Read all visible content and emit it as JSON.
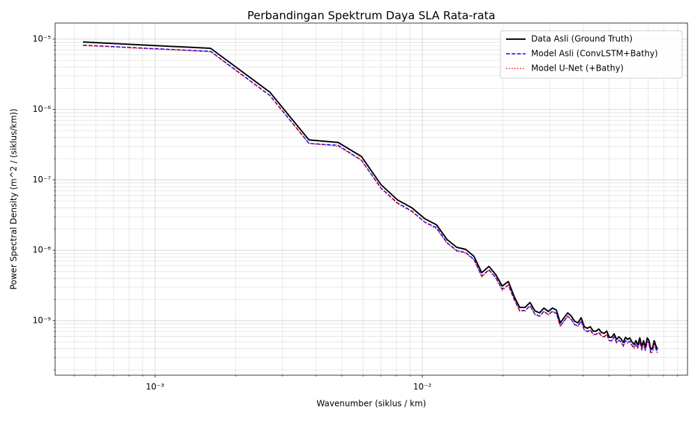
{
  "chart_data": {
    "type": "line",
    "title": "Perbandingan Spektrum Daya SLA Rata-rata",
    "x_label": "Wavenumber (siklus / km)",
    "y_label": "Power Spectral Density (m^2 / (siklus/km))",
    "xscale": "log",
    "yscale": "log",
    "grid": true,
    "legend": "upper right",
    "xlim": [
      0.000423,
      0.0982
    ],
    "ylim": [
      1.68e-10,
      1.69e-05
    ],
    "xticks": [
      {
        "value": 0.001,
        "label": "10⁻³"
      },
      {
        "value": 0.01,
        "label": "10⁻²"
      }
    ],
    "yticks": [
      {
        "value": 1e-09,
        "label": "10⁻⁹"
      },
      {
        "value": 1e-08,
        "label": "10⁻⁸"
      },
      {
        "value": 1e-07,
        "label": "10⁻⁷"
      },
      {
        "value": 1e-06,
        "label": "10⁻⁶"
      },
      {
        "value": 1e-05,
        "label": "10⁻⁵"
      }
    ],
    "xminorticks": [
      0.0005,
      0.0006,
      0.0007,
      0.0008,
      0.0009,
      0.002,
      0.003,
      0.004,
      0.005,
      0.006,
      0.007,
      0.008,
      0.009,
      0.02,
      0.03,
      0.04,
      0.05,
      0.06,
      0.07,
      0.08,
      0.09
    ],
    "yminorticks": [
      2e-10,
      3e-10,
      4e-10,
      5e-10,
      6e-10,
      7e-10,
      8e-10,
      9e-10,
      2e-09,
      3e-09,
      4e-09,
      5e-09,
      6e-09,
      7e-09,
      8e-09,
      9e-09,
      2e-08,
      3e-08,
      4e-08,
      5e-08,
      6e-08,
      7e-08,
      8e-08,
      9e-08,
      2e-07,
      3e-07,
      4e-07,
      5e-07,
      6e-07,
      7e-07,
      8e-07,
      9e-07,
      2e-06,
      3e-06,
      4e-06,
      5e-06,
      6e-06,
      7e-06,
      8e-06,
      9e-06
    ],
    "x": [
      0.000538,
      0.001614,
      0.00269,
      0.003766,
      0.004842,
      0.005918,
      0.006994,
      0.00807,
      0.009146,
      0.010222,
      0.011298,
      0.012374,
      0.01345,
      0.014526,
      0.015602,
      0.016678,
      0.017754,
      0.01883,
      0.019906,
      0.020982,
      0.022058,
      0.023134,
      0.02421,
      0.025286,
      0.026362,
      0.027438,
      0.028514,
      0.02959,
      0.030666,
      0.031742,
      0.032818,
      0.033894,
      0.03497,
      0.036046,
      0.037122,
      0.038198,
      0.039274,
      0.04035,
      0.041426,
      0.042502,
      0.043578,
      0.044654,
      0.04573,
      0.046806,
      0.047882,
      0.048958,
      0.050034,
      0.05111,
      0.052186,
      0.053262,
      0.054338,
      0.055414,
      0.05649,
      0.057566,
      0.058642,
      0.059718,
      0.060794,
      0.06187,
      0.062946,
      0.064022,
      0.065098,
      0.066174,
      0.06725,
      0.068326,
      0.069402,
      0.070478,
      0.071554,
      0.07263,
      0.073706,
      0.074782,
      0.075858
    ],
    "series": [
      {
        "name": "Data Asli (Ground Truth)",
        "color": "#000000",
        "linestyle": "solid",
        "values": [
          9.1e-06,
          7.4e-06,
          1.76e-06,
          3.7e-07,
          3.4e-07,
          2.15e-07,
          8.6e-08,
          5.2e-08,
          4e-08,
          2.8e-08,
          2.3e-08,
          1.42e-08,
          1.1e-08,
          1.03e-08,
          8.2e-09,
          4.8e-09,
          5.9e-09,
          4.5e-09,
          3.1e-09,
          3.6e-09,
          2.2e-09,
          1.54e-09,
          1.54e-09,
          1.81e-09,
          1.38e-09,
          1.29e-09,
          1.51e-09,
          1.35e-09,
          1.51e-09,
          1.41e-09,
          9.3e-10,
          1.1e-09,
          1.29e-09,
          1.17e-09,
          9.8e-10,
          9.3e-10,
          1.1e-09,
          8.2e-10,
          7.8e-10,
          8.2e-10,
          7.1e-10,
          7.1e-10,
          7.6e-10,
          6.8e-10,
          6.6e-10,
          7.1e-10,
          5.8e-10,
          5.8e-10,
          6.5e-10,
          5.4e-10,
          5.9e-10,
          5.5e-10,
          4.9e-10,
          5.8e-10,
          5.4e-10,
          5.7e-10,
          5e-10,
          4.6e-10,
          5.2e-10,
          4.5e-10,
          5.7e-10,
          4.3e-10,
          5.2e-10,
          4.2e-10,
          5.7e-10,
          5.2e-10,
          3.9e-10,
          4.1e-10,
          5.2e-10,
          4.4e-10,
          3.9e-10
        ]
      },
      {
        "name": "Model Asli (ConvLSTM+Bathy)",
        "color": "#0000ff",
        "linestyle": "dashed",
        "values": [
          8.2e-06,
          6.7e-06,
          1.58e-06,
          3.3e-07,
          3.1e-07,
          1.9e-07,
          7.7e-08,
          4.7e-08,
          3.6e-08,
          2.5e-08,
          2.1e-08,
          1.28e-08,
          9.9e-09,
          9.3e-09,
          7.4e-09,
          4.3e-09,
          5.3e-09,
          4.1e-09,
          2.8e-09,
          3.2e-09,
          2e-09,
          1.39e-09,
          1.39e-09,
          1.63e-09,
          1.24e-09,
          1.16e-09,
          1.36e-09,
          1.22e-09,
          1.36e-09,
          1.27e-09,
          8.4e-10,
          9.9e-10,
          1.16e-09,
          1.05e-09,
          8.8e-10,
          8.4e-10,
          9.9e-10,
          7.4e-10,
          7e-10,
          7.4e-10,
          6.4e-10,
          6.4e-10,
          6.8e-10,
          6.1e-10,
          5.9e-10,
          6.4e-10,
          5.2e-10,
          5.2e-10,
          5.9e-10,
          4.9e-10,
          5.3e-10,
          5e-10,
          4.4e-10,
          5.2e-10,
          4.9e-10,
          5.1e-10,
          4.5e-10,
          4.1e-10,
          4.7e-10,
          4.1e-10,
          5.1e-10,
          3.9e-10,
          4.7e-10,
          3.8e-10,
          5.1e-10,
          4.7e-10,
          3.5e-10,
          3.7e-10,
          4.7e-10,
          4e-10,
          3.5e-10
        ]
      },
      {
        "name": "Model U-Net (+Bathy)",
        "color": "#ff0000",
        "linestyle": "dotted",
        "values": [
          8.1e-06,
          6.6e-06,
          1.56e-06,
          3.3e-07,
          3e-07,
          1.9e-07,
          7.6e-08,
          4.6e-08,
          3.5e-08,
          2.5e-08,
          2e-08,
          1.26e-08,
          9.7e-09,
          9.1e-09,
          7.3e-09,
          4.2e-09,
          5.2e-09,
          4e-09,
          2.7e-09,
          3.2e-09,
          2e-09,
          1.37e-09,
          1.37e-09,
          1.61e-09,
          1.22e-09,
          1.15e-09,
          1.34e-09,
          1.2e-09,
          1.34e-09,
          1.25e-09,
          8.3e-10,
          9.8e-10,
          1.15e-09,
          1.04e-09,
          8.7e-10,
          8.3e-10,
          9.8e-10,
          7.3e-10,
          6.9e-10,
          7.3e-10,
          6.3e-10,
          6.3e-10,
          6.7e-10,
          6e-10,
          5.8e-10,
          6.3e-10,
          5.1e-10,
          5.1e-10,
          5.8e-10,
          4.8e-10,
          5.2e-10,
          4.9e-10,
          4.3e-10,
          5.1e-10,
          4.8e-10,
          5e-10,
          4.4e-10,
          4e-10,
          4.6e-10,
          4e-10,
          5e-10,
          3.8e-10,
          4.6e-10,
          3.7e-10,
          5e-10,
          4.6e-10,
          3.4e-10,
          3.6e-10,
          4.6e-10,
          3.9e-10,
          3.4e-10
        ]
      }
    ]
  }
}
